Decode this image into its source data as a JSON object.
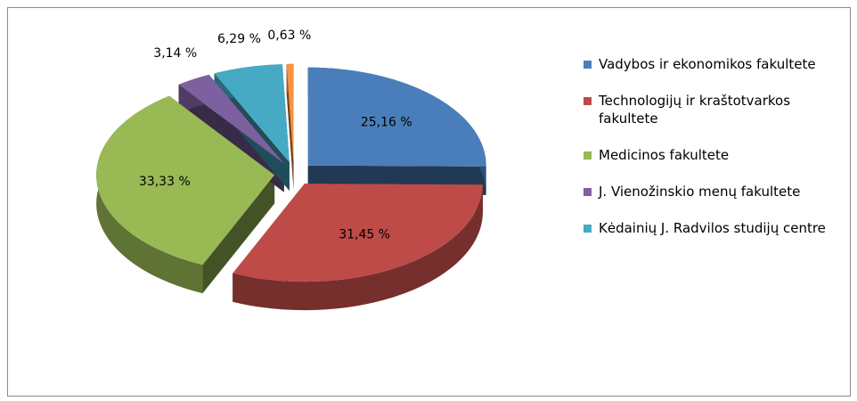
{
  "chart_data": {
    "type": "pie",
    "categories": [
      "Vadybos ir ekonomikos fakultete",
      "Technologijų ir kraštotvarkos fakultete",
      "Medicinos fakultete",
      "J. Vienožinskio menų fakultete",
      "Kėdainių J. Radvilos studijų centre",
      null
    ],
    "values": [
      25.16,
      31.45,
      33.33,
      3.14,
      6.29,
      0.63
    ],
    "value_labels": [
      "25,16 %",
      "31,45 %",
      "33,33 %",
      "3,14 %",
      "6,29 %",
      "0,63 %"
    ],
    "colors": [
      "#4a7ebb",
      "#be4b48",
      "#98b954",
      "#7d60a0",
      "#46aac5",
      "#f69240"
    ]
  }
}
